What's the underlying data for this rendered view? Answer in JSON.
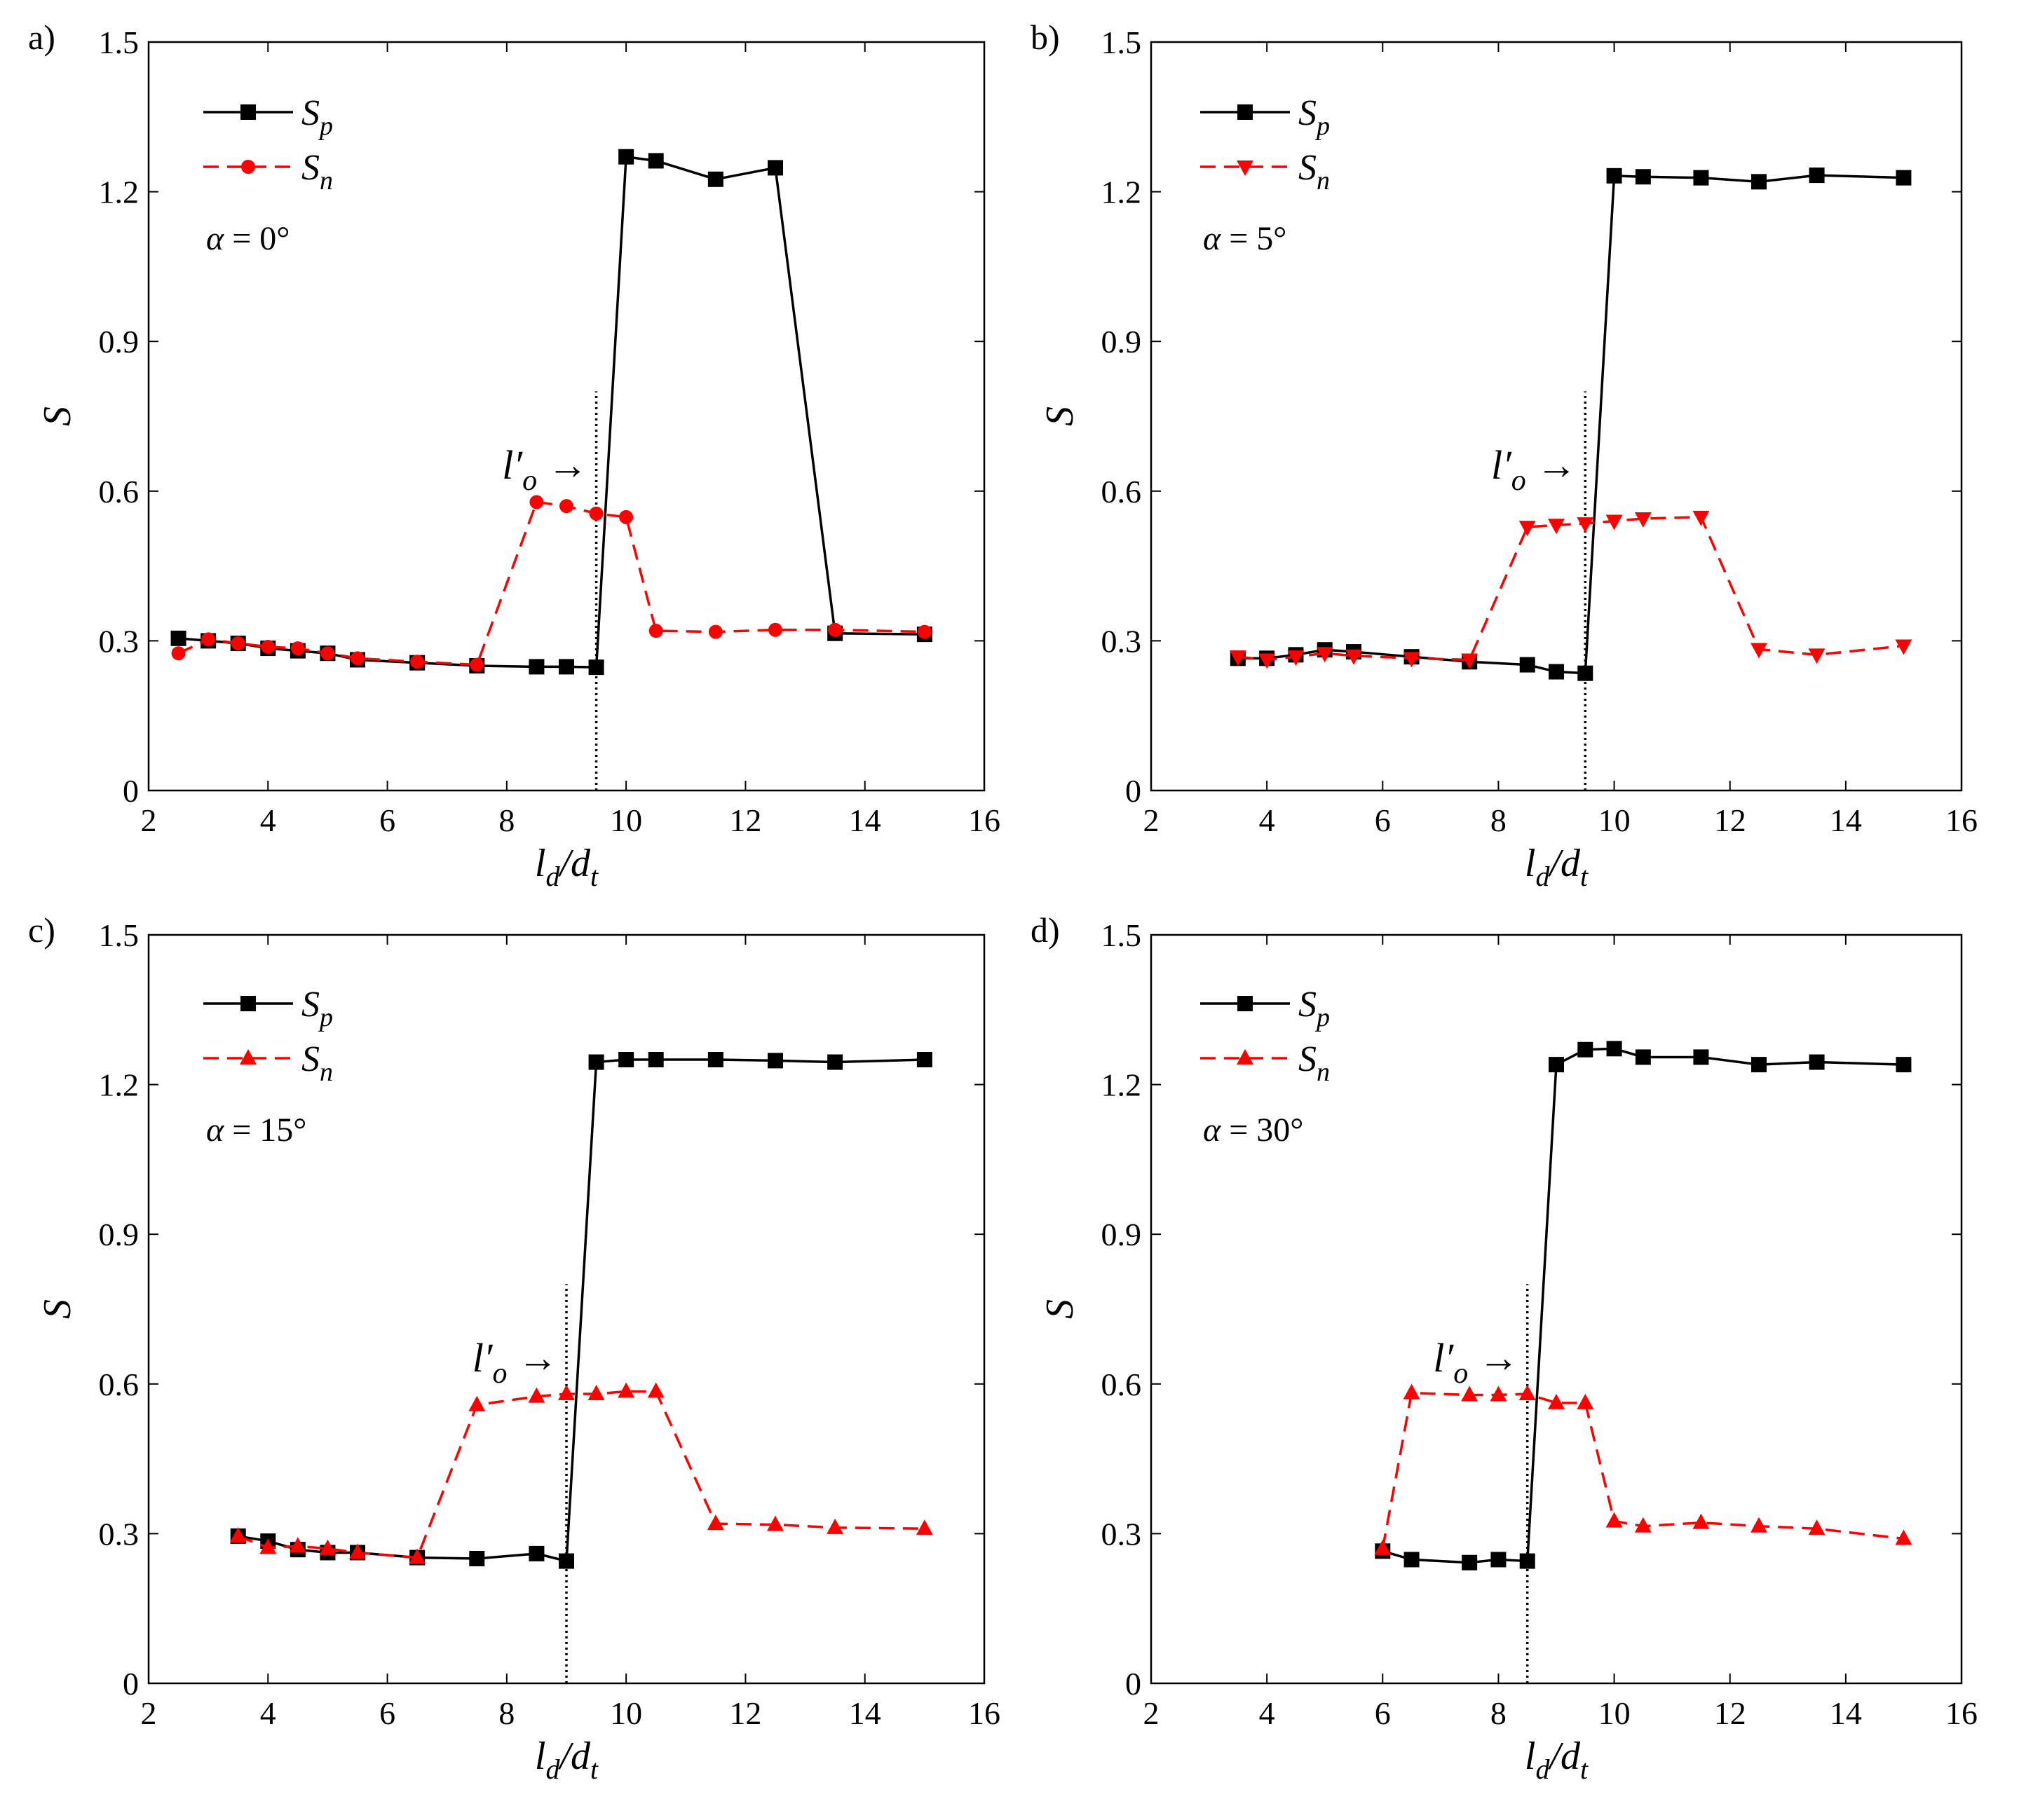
{
  "chart_data": [
    {
      "type": "line",
      "panel_label": "a)",
      "xlabel": "l_d/d_t",
      "ylabel": "S",
      "xlim": [
        2,
        16
      ],
      "ylim": [
        0,
        1.5
      ],
      "xticks": [
        2,
        4,
        6,
        8,
        10,
        12,
        14,
        16
      ],
      "yticks": [
        0,
        0.3,
        0.6,
        0.9,
        1.2,
        1.5
      ],
      "ytick_labels": [
        "0",
        "0.3",
        "0.6",
        "0.9",
        "1.2",
        "1.5"
      ],
      "legend_position": "top-left",
      "annotation": "α = 0°",
      "alpha": "0",
      "vline": {
        "x": 9.5,
        "label": "l'_o →"
      },
      "series": [
        {
          "name": "S_p",
          "main": "S",
          "sub": "p",
          "color": "#000000",
          "linestyle": "solid",
          "marker": "square",
          "x": [
            2.5,
            3,
            3.5,
            4,
            4.5,
            5,
            5.5,
            6.5,
            7.5,
            8.5,
            9,
            9.5,
            10,
            10.5,
            11.5,
            12.5,
            13.5,
            15
          ],
          "y": [
            0.305,
            0.3,
            0.295,
            0.285,
            0.28,
            0.275,
            0.262,
            0.256,
            0.25,
            0.248,
            0.248,
            0.247,
            1.27,
            1.262,
            1.225,
            1.248,
            0.315,
            0.313
          ]
        },
        {
          "name": "S_n",
          "main": "S",
          "sub": "n",
          "color": "#ff0000",
          "linestyle": "dashed",
          "marker": "circle",
          "x": [
            2.5,
            3,
            3.5,
            4,
            4.5,
            5,
            5.5,
            6.5,
            7.5,
            8.5,
            9,
            9.5,
            10,
            10.5,
            11.5,
            12.5,
            13.5,
            15
          ],
          "y": [
            0.275,
            0.303,
            0.295,
            0.288,
            0.285,
            0.275,
            0.265,
            0.258,
            0.252,
            0.578,
            0.57,
            0.555,
            0.548,
            0.32,
            0.318,
            0.322,
            0.322,
            0.318
          ]
        }
      ]
    },
    {
      "type": "line",
      "panel_label": "b)",
      "xlabel": "l_d/d_t",
      "ylabel": "S",
      "xlim": [
        2,
        16
      ],
      "ylim": [
        0,
        1.5
      ],
      "xticks": [
        2,
        4,
        6,
        8,
        10,
        12,
        14,
        16
      ],
      "yticks": [
        0,
        0.3,
        0.6,
        0.9,
        1.2,
        1.5
      ],
      "ytick_labels": [
        "0",
        "0.3",
        "0.6",
        "0.9",
        "1.2",
        "1.5"
      ],
      "legend_position": "top-left",
      "annotation": "α = 5°",
      "alpha": "5",
      "vline": {
        "x": 9.5,
        "label": "l'_o →"
      },
      "series": [
        {
          "name": "S_p",
          "main": "S",
          "sub": "p",
          "color": "#000000",
          "linestyle": "solid",
          "marker": "square",
          "x": [
            3.5,
            4,
            4.5,
            5,
            5.5,
            6.5,
            7.5,
            8.5,
            9,
            9.5,
            10,
            10.5,
            11.5,
            12.5,
            13.5,
            15
          ],
          "y": [
            0.265,
            0.265,
            0.272,
            0.282,
            0.278,
            0.268,
            0.258,
            0.252,
            0.238,
            0.235,
            1.232,
            1.23,
            1.228,
            1.22,
            1.233,
            1.228
          ]
        },
        {
          "name": "S_n",
          "main": "S",
          "sub": "n",
          "color": "#ff0000",
          "linestyle": "dashed",
          "marker": "triangle-down",
          "x": [
            3.5,
            4,
            4.5,
            5,
            5.5,
            6.5,
            7.5,
            8.5,
            9,
            9.5,
            10,
            10.5,
            11.5,
            12.5,
            13.5,
            15
          ],
          "y": [
            0.268,
            0.262,
            0.268,
            0.275,
            0.27,
            0.265,
            0.262,
            0.528,
            0.532,
            0.535,
            0.54,
            0.545,
            0.548,
            0.283,
            0.272,
            0.29
          ]
        }
      ]
    },
    {
      "type": "line",
      "panel_label": "c)",
      "xlabel": "l_d/d_t",
      "ylabel": "S",
      "xlim": [
        2,
        16
      ],
      "ylim": [
        0,
        1.5
      ],
      "xticks": [
        2,
        4,
        6,
        8,
        10,
        12,
        14,
        16
      ],
      "yticks": [
        0,
        0.3,
        0.6,
        0.9,
        1.2,
        1.5
      ],
      "ytick_labels": [
        "0",
        "0.3",
        "0.6",
        "0.9",
        "1.2",
        "1.5"
      ],
      "legend_position": "top-left",
      "annotation": "α = 15°",
      "alpha": "15",
      "vline": {
        "x": 9.0,
        "label": "l'_o →"
      },
      "series": [
        {
          "name": "S_p",
          "main": "S",
          "sub": "p",
          "color": "#000000",
          "linestyle": "solid",
          "marker": "square",
          "x": [
            3.5,
            4,
            4.5,
            5,
            5.5,
            6.5,
            7.5,
            8.5,
            9,
            9.5,
            10,
            10.5,
            11.5,
            12.5,
            13.5,
            15
          ],
          "y": [
            0.295,
            0.285,
            0.268,
            0.262,
            0.262,
            0.252,
            0.25,
            0.26,
            0.245,
            1.245,
            1.25,
            1.25,
            1.25,
            1.248,
            1.245,
            1.25
          ]
        },
        {
          "name": "S_n",
          "main": "S",
          "sub": "n",
          "color": "#ff0000",
          "linestyle": "dashed",
          "marker": "triangle-up",
          "x": [
            3.5,
            4,
            4.5,
            5,
            5.5,
            6.5,
            7.5,
            8.5,
            9,
            9.5,
            10,
            10.5,
            11.5,
            12.5,
            13.5,
            15
          ],
          "y": [
            0.295,
            0.272,
            0.275,
            0.27,
            0.262,
            0.252,
            0.558,
            0.575,
            0.58,
            0.58,
            0.585,
            0.585,
            0.32,
            0.318,
            0.312,
            0.31
          ]
        }
      ]
    },
    {
      "type": "line",
      "panel_label": "d)",
      "xlabel": "l_d/d_t",
      "ylabel": "S",
      "xlim": [
        2,
        16
      ],
      "ylim": [
        0,
        1.5
      ],
      "xticks": [
        2,
        4,
        6,
        8,
        10,
        12,
        14,
        16
      ],
      "yticks": [
        0,
        0.3,
        0.6,
        0.9,
        1.2,
        1.5
      ],
      "ytick_labels": [
        "0",
        "0.3",
        "0.6",
        "0.9",
        "1.2",
        "1.5"
      ],
      "legend_position": "top-left",
      "annotation": "α = 30°",
      "alpha": "30",
      "vline": {
        "x": 8.5,
        "label": "l'_o →"
      },
      "series": [
        {
          "name": "S_p",
          "main": "S",
          "sub": "p",
          "color": "#000000",
          "linestyle": "solid",
          "marker": "square",
          "x": [
            6,
            6.5,
            7.5,
            8,
            8.5,
            9,
            9.5,
            10,
            10.5,
            11.5,
            12.5,
            13.5,
            15
          ],
          "y": [
            0.265,
            0.248,
            0.242,
            0.248,
            0.245,
            1.24,
            1.27,
            1.272,
            1.255,
            1.255,
            1.24,
            1.245,
            1.24
          ]
        },
        {
          "name": "S_n",
          "main": "S",
          "sub": "n",
          "color": "#ff0000",
          "linestyle": "dashed",
          "marker": "triangle-up",
          "x": [
            6,
            6.5,
            7.5,
            8,
            8.5,
            9,
            9.5,
            10,
            10.5,
            11.5,
            12.5,
            13.5,
            15
          ],
          "y": [
            0.27,
            0.582,
            0.578,
            0.578,
            0.58,
            0.562,
            0.562,
            0.325,
            0.315,
            0.322,
            0.315,
            0.31,
            0.29
          ]
        }
      ]
    }
  ]
}
